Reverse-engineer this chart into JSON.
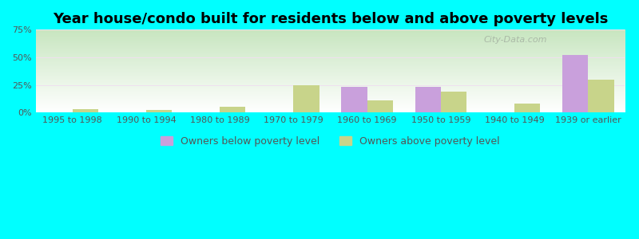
{
  "title": "Year house/condo built for residents below and above poverty levels",
  "categories": [
    "1995 to 1998",
    "1990 to 1994",
    "1980 to 1989",
    "1970 to 1979",
    "1960 to 1969",
    "1950 to 1959",
    "1940 to 1949",
    "1939 or earlier"
  ],
  "below_poverty": [
    0.0,
    0.0,
    0.0,
    0.0,
    23.0,
    23.0,
    0.0,
    52.0
  ],
  "above_poverty": [
    3.0,
    2.0,
    5.0,
    25.0,
    11.0,
    19.0,
    8.0,
    30.0
  ],
  "below_color": "#c9a0dc",
  "above_color": "#c8d48a",
  "ylim": [
    0,
    75
  ],
  "yticks": [
    0,
    25,
    50,
    75
  ],
  "ytick_labels": [
    "0%",
    "25%",
    "50%",
    "75%"
  ],
  "background_color": "#00ffff",
  "plot_bg_top": "#ffffff",
  "plot_bg_bottom": "#c8e6c0",
  "legend_below_label": "Owners below poverty level",
  "legend_above_label": "Owners above poverty level",
  "bar_width": 0.35,
  "title_fontsize": 13,
  "tick_fontsize": 8,
  "legend_fontsize": 9,
  "grid_color": "#e0eed8",
  "watermark": "City-Data.com"
}
